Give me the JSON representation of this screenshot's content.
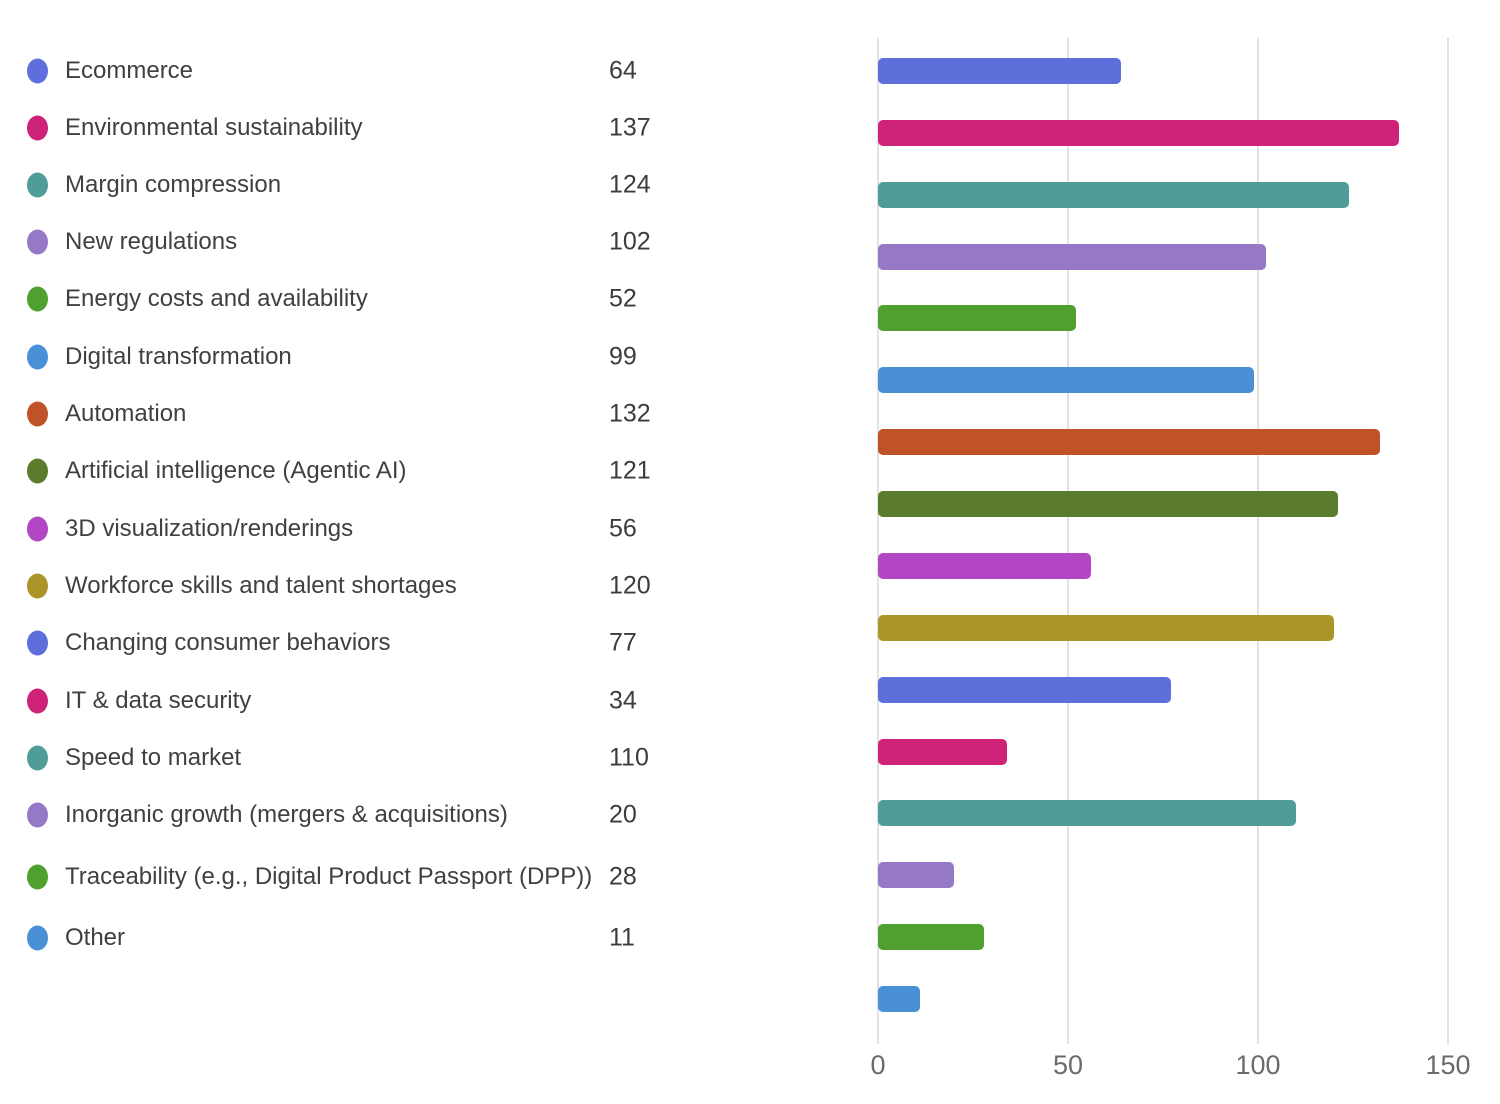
{
  "chart_data": {
    "type": "bar",
    "orientation": "horizontal",
    "title": "",
    "xlabel": "",
    "ylabel": "",
    "xlim": [
      0,
      150
    ],
    "x_ticks": [
      0,
      50,
      100,
      150
    ],
    "grid": true,
    "legend_position": "left",
    "categories": [
      "Ecommerce",
      "Environmental sustainability",
      "Margin compression",
      "New regulations",
      "Energy costs and availability",
      "Digital transformation",
      "Automation",
      "Artificial intelligence (Agentic AI)",
      "3D visualization/renderings",
      "Workforce skills and talent shortages",
      "Changing consumer behaviors",
      "IT & data security",
      "Speed to market",
      "Inorganic growth (mergers & acquisitions)",
      "Traceability (e.g., Digital Product Passport (DPP))",
      "Other"
    ],
    "values": [
      64,
      137,
      124,
      102,
      52,
      99,
      132,
      121,
      56,
      120,
      77,
      34,
      110,
      20,
      28,
      11
    ],
    "colors": [
      "#5E6FDC",
      "#CE2378",
      "#4F9C99",
      "#9679C6",
      "#4FA02E",
      "#4A90D6",
      "#BF5227",
      "#5B7C2D",
      "#B346C4",
      "#AB9428",
      "#5E6FDC",
      "#CE2378",
      "#4F9C99",
      "#9679C6",
      "#4FA02E",
      "#4A90D6"
    ]
  },
  "axis": {
    "tick_labels": [
      "0",
      "50",
      "100",
      "150"
    ]
  },
  "style_colors": {
    "label_text": "#404040",
    "tick_text": "#6B6B6B",
    "gridline": "#E2E2E2",
    "background": "#FFFFFF"
  }
}
